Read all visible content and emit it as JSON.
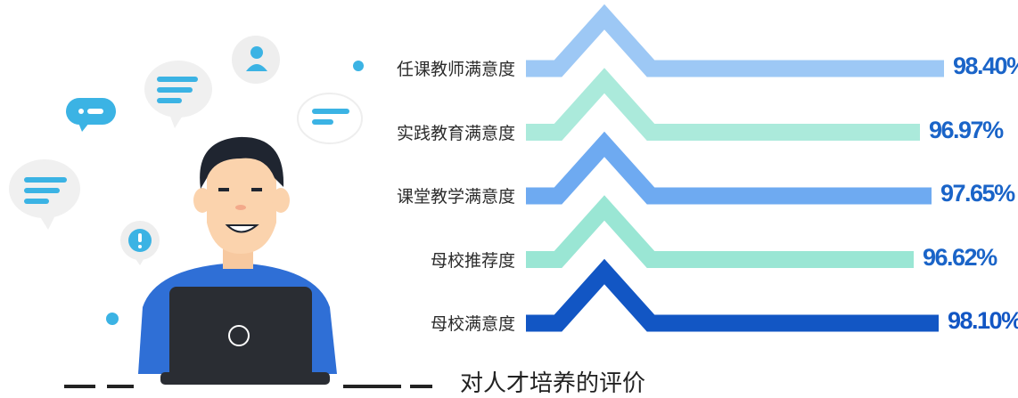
{
  "chart_data": {
    "type": "bar",
    "title": "对人才培养的评价",
    "categories": [
      "任课教师满意度",
      "实践教育满意度",
      "课堂教学满意度",
      "母校推荐度",
      "母校满意度"
    ],
    "values": [
      98.4,
      96.97,
      97.65,
      96.62,
      98.1
    ],
    "value_labels": [
      "98.40%",
      "96.97%",
      "97.65%",
      "96.62%",
      "98.10%"
    ],
    "colors": [
      "#9dc8f5",
      "#abeadb",
      "#6eaaf1",
      "#9ae6d4",
      "#1256c4"
    ],
    "unit": "%"
  }
}
